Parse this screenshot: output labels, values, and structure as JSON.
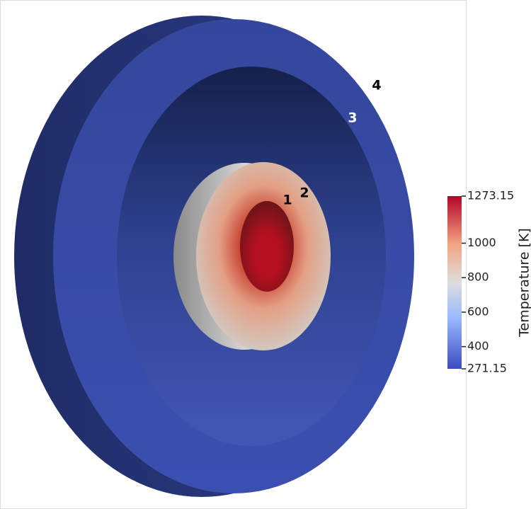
{
  "labels": [
    "1",
    "2",
    "3",
    "4"
  ],
  "colorbar": {
    "title": "Temperature [K]",
    "range": [
      271.15,
      1273.15
    ],
    "ticks": [
      271.15,
      400,
      600,
      800,
      1000,
      1273.15
    ]
  }
}
